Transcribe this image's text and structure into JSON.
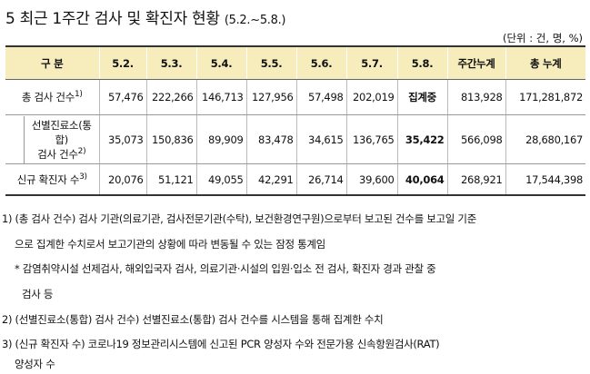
{
  "title": {
    "main": "5 최근 1주간 검사 및 확진자 현황",
    "range": "(5.2.~5.8.)"
  },
  "unit_note": "(단위 : 건, 명, %)",
  "table": {
    "headers": [
      "구  분",
      "5.2.",
      "5.3.",
      "5.4.",
      "5.5.",
      "5.6.",
      "5.7.",
      "5.8.",
      "주간누계",
      "총 누계"
    ],
    "rows": [
      {
        "label": "총 검사 건수",
        "label_sup": "1)",
        "values": [
          "57,476",
          "222,266",
          "146,713",
          "127,956",
          "57,498",
          "202,019",
          "집계중",
          "813,928",
          "171,281,872"
        ]
      },
      {
        "label_line1": "선별진료소(통",
        "label_line2": "합)",
        "label_line3": "검사 건수",
        "label_sup": "2)",
        "values": [
          "35,073",
          "150,836",
          "89,909",
          "83,478",
          "34,615",
          "136,765",
          "35,422",
          "566,098",
          "28,680,167"
        ]
      },
      {
        "label": "신규 확진자 수",
        "label_sup": "3)",
        "values": [
          "20,076",
          "51,121",
          "49,055",
          "42,291",
          "26,714",
          "39,600",
          "40,064",
          "268,921",
          "17,544,398"
        ]
      }
    ]
  },
  "notes": {
    "n1_line1": "1) (총 검사 건수) 검사 기관(의료기관, 검사전문기관(수탁), 보건환경연구원)으로부터 보고된 건수를 보고일 기준",
    "n1_line2": "으로 집계한 수치로서 보고기관의 상황에 따라 변동될 수 있는 잠정 통계임",
    "n1_star_line1": "* 감염취약시설 선제검사, 해외입국자 검사, 의료기관·시설의 입원·입소 전 검사, 확진자 경과 관찰 중",
    "n1_star_line2": "검사 등",
    "n2": "2) (선별진료소(통합) 검사 건수) 선별진료소(통합) 검사 건수를 시스템을 통해 집계한 수치",
    "n3_line1": "3) (신규 확진자 수) 코로나19 정보관리시스템에 신고된 PCR 양성자 수와 전문가용 신속항원검사(RAT)",
    "n3_line2": "양성자 수"
  }
}
